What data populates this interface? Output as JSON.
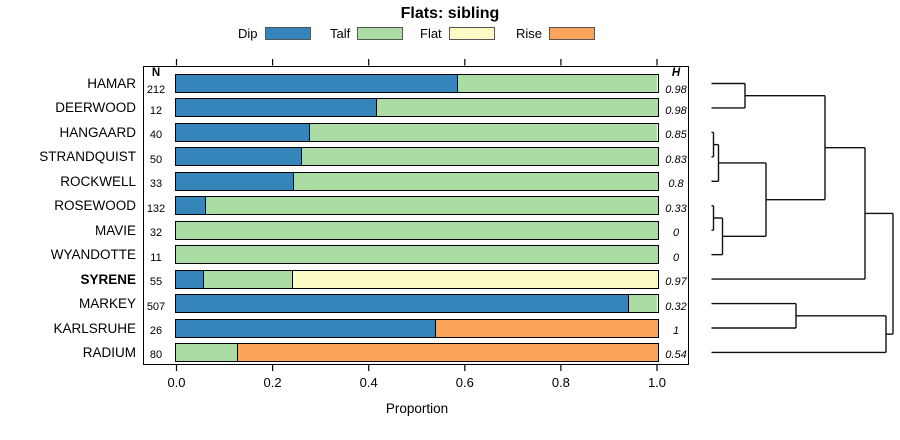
{
  "chart_data": {
    "type": "bar",
    "variant": "horizontal_stacked_proportions_with_dendrogram",
    "title": "Flats: sibling",
    "xlabel": "Proportion",
    "xlim": [
      0,
      1
    ],
    "grid": false,
    "legend_position": "top",
    "x_ticks": [
      {
        "value": 0.0,
        "label": "0.0"
      },
      {
        "value": 0.2,
        "label": "0.2"
      },
      {
        "value": 0.4,
        "label": "0.4"
      },
      {
        "value": 0.6,
        "label": "0.6"
      },
      {
        "value": 0.8,
        "label": "0.8"
      },
      {
        "value": 1.0,
        "label": "1.0"
      }
    ],
    "legend": [
      {
        "label": "Dip",
        "color": "#3584BA"
      },
      {
        "label": "Talf",
        "color": "#ABDCA3"
      },
      {
        "label": "Flat",
        "color": "#FBFBC6"
      },
      {
        "label": "Rise",
        "color": "#FAA55B"
      }
    ],
    "columns": {
      "n_header": "N",
      "h_header": "H"
    },
    "rows": [
      {
        "label": "HAMAR",
        "n": "212",
        "h": "0.98",
        "bold": false,
        "segments": [
          {
            "category": "Dip",
            "value": 0.585
          },
          {
            "category": "Talf",
            "value": 0.415
          }
        ]
      },
      {
        "label": "DEERWOOD",
        "n": "12",
        "h": "0.98",
        "bold": false,
        "segments": [
          {
            "category": "Dip",
            "value": 0.417
          },
          {
            "category": "Talf",
            "value": 0.583
          }
        ]
      },
      {
        "label": "HANGAARD",
        "n": "40",
        "h": "0.85",
        "bold": false,
        "segments": [
          {
            "category": "Dip",
            "value": 0.276
          },
          {
            "category": "Talf",
            "value": 0.724
          }
        ]
      },
      {
        "label": "STRANDQUIST",
        "n": "50",
        "h": "0.83",
        "bold": false,
        "segments": [
          {
            "category": "Dip",
            "value": 0.261
          },
          {
            "category": "Talf",
            "value": 0.739
          }
        ]
      },
      {
        "label": "ROCKWELL",
        "n": "33",
        "h": "0.8",
        "bold": false,
        "segments": [
          {
            "category": "Dip",
            "value": 0.243
          },
          {
            "category": "Talf",
            "value": 0.757
          }
        ]
      },
      {
        "label": "ROSEWOOD",
        "n": "132",
        "h": "0.33",
        "bold": false,
        "segments": [
          {
            "category": "Dip",
            "value": 0.061
          },
          {
            "category": "Talf",
            "value": 0.939
          }
        ]
      },
      {
        "label": "MAVIE",
        "n": "32",
        "h": "0",
        "bold": false,
        "segments": [
          {
            "category": "Talf",
            "value": 1.0
          }
        ]
      },
      {
        "label": "WYANDOTTE",
        "n": "11",
        "h": "0",
        "bold": false,
        "segments": [
          {
            "category": "Talf",
            "value": 1.0
          }
        ]
      },
      {
        "label": "SYRENE",
        "n": "55",
        "h": "0.97",
        "bold": true,
        "segments": [
          {
            "category": "Dip",
            "value": 0.057
          },
          {
            "category": "Talf",
            "value": 0.182
          },
          {
            "category": "Flat",
            "value": 0.761
          }
        ]
      },
      {
        "label": "MARKEY",
        "n": "507",
        "h": "0.32",
        "bold": false,
        "segments": [
          {
            "category": "Dip",
            "value": 0.941
          },
          {
            "category": "Talf",
            "value": 0.059
          }
        ]
      },
      {
        "label": "KARLSRUHE",
        "n": "26",
        "h": "1",
        "bold": false,
        "segments": [
          {
            "category": "Dip",
            "value": 0.54
          },
          {
            "category": "Rise",
            "value": 0.46
          }
        ]
      },
      {
        "label": "RADIUM",
        "n": "80",
        "h": "0.54",
        "bold": false,
        "segments": [
          {
            "category": "Talf",
            "value": 0.127
          },
          {
            "category": "Rise",
            "value": 0.873
          }
        ]
      }
    ],
    "dendrogram": {
      "leaves": [
        "HAMAR",
        "DEERWOOD",
        "HANGAARD",
        "STRANDQUIST",
        "ROCKWELL",
        "ROSEWOOD",
        "MAVIE",
        "WYANDOTTE",
        "SYRENE",
        "MARKEY",
        "KARLSRUHE",
        "RADIUM"
      ],
      "leaf_x": 711.5,
      "merges": [
        {
          "id": "M1",
          "a": "L0",
          "b": "L1",
          "x": 745
        },
        {
          "id": "M2",
          "a": "L2",
          "b": "L3",
          "x": 713.5
        },
        {
          "id": "M3",
          "a": "M2",
          "b": "L4",
          "x": 718.5
        },
        {
          "id": "M4",
          "a": "L5",
          "b": "L6",
          "x": 713.5
        },
        {
          "id": "M5",
          "a": "M4",
          "b": "L7",
          "x": 722.5
        },
        {
          "id": "M6",
          "a": "M3",
          "b": "M5",
          "x": 766
        },
        {
          "id": "M7",
          "a": "M1",
          "b": "M6",
          "x": 825
        },
        {
          "id": "M8",
          "a": "M7",
          "b": "L8",
          "x": 865
        },
        {
          "id": "M9",
          "a": "L9",
          "b": "L10",
          "x": 796
        },
        {
          "id": "M10",
          "a": "M9",
          "b": "L11",
          "x": 886
        },
        {
          "id": "M11",
          "a": "M8",
          "b": "M10",
          "x": 893
        }
      ]
    }
  },
  "colors": {
    "dip": "#3584BA",
    "talf": "#ABDCA3",
    "flat": "#FBFBC6",
    "rise": "#FAA55B",
    "bar_border": "#000000",
    "axis": "#000000",
    "dendrogram_line": "#111111",
    "legend_swatch_border": "#555555",
    "text": "#000000",
    "background": "#FFFFFF"
  }
}
